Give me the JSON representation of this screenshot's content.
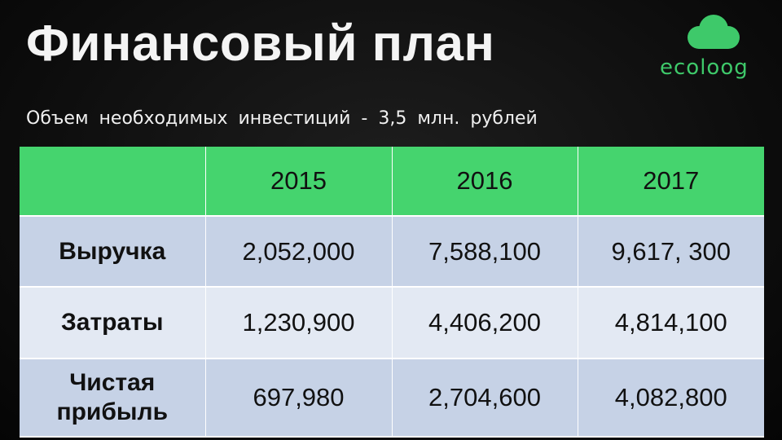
{
  "slide": {
    "title": "Финансовый план",
    "subtitle": "Объем необходимых инвестиций - 3,5 млн. рублей"
  },
  "logo": {
    "text": "ecoloog",
    "icon": "cloud-icon",
    "color": "#3ec96a"
  },
  "table": {
    "header": [
      "",
      "2015",
      "2016",
      "2017"
    ],
    "rows": [
      {
        "label": "Выручка",
        "values": [
          "2,052,000",
          "7,588,100",
          "9,617, 300"
        ]
      },
      {
        "label": "Затраты",
        "values": [
          "1,230,900",
          "4,406,200",
          "4,814,100"
        ]
      },
      {
        "label": "Чистая прибыль",
        "values": [
          "697,980",
          "2,704,600",
          "4,082,800"
        ]
      }
    ],
    "colors": {
      "header_bg": "#45d46e",
      "row_bg_dark": "#c6d2e6",
      "row_bg_light": "#e3e9f3"
    }
  }
}
